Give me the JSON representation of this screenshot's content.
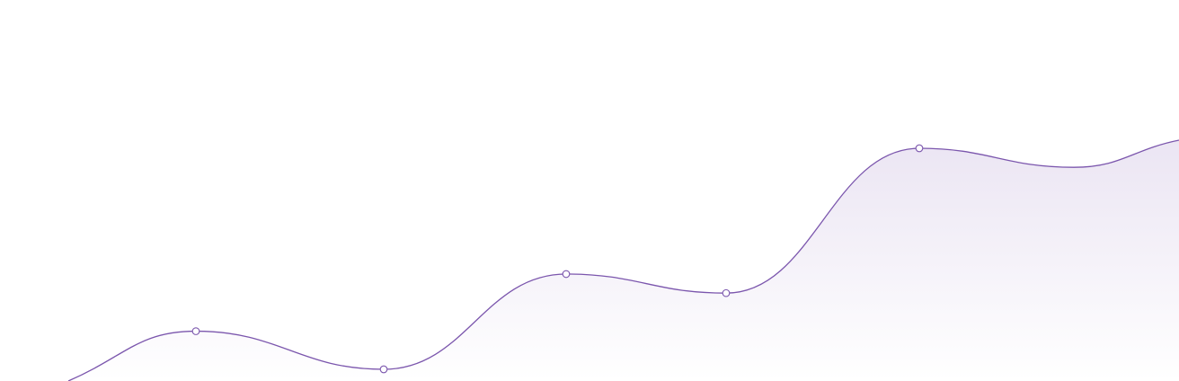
{
  "chart_data": {
    "type": "area",
    "title": "",
    "xlabel": "",
    "ylabel": "",
    "grid": false,
    "legend": "none",
    "axes_visible": false,
    "x": [
      0,
      1,
      2,
      3,
      4,
      5
    ],
    "y_range": [
      0,
      100
    ],
    "series": [
      {
        "values": [
          12,
          2,
          27,
          22,
          60,
          55
        ],
        "marker_indices": [
          0,
          1,
          2,
          3,
          4
        ]
      }
    ],
    "colors": {
      "line": "#7b56ad",
      "fill_top": "#ebe5f3",
      "fill_bottom": "#ffffff",
      "marker_fill": "#ffffff",
      "marker_stroke": "#7b56ad"
    }
  }
}
